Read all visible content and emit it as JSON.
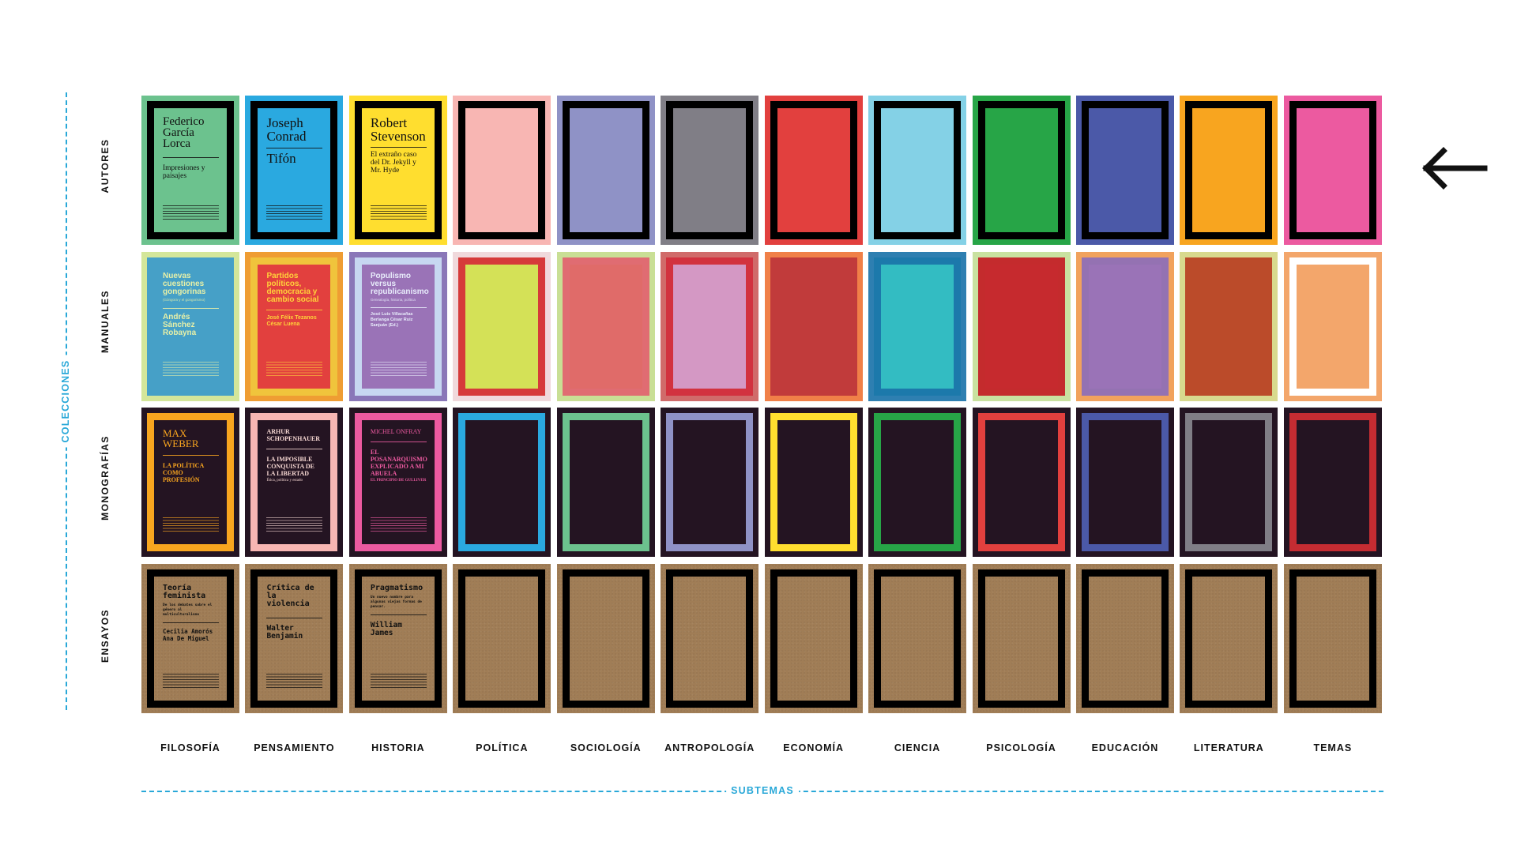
{
  "axis": {
    "vertical_label": "COLECCIONES",
    "horizontal_label": "SUBTEMAS",
    "accent_color": "#29a8d8"
  },
  "rows": [
    "AUTORES",
    "MANUALES",
    "MONOGRAFÍAS",
    "ENSAYOS"
  ],
  "columns": [
    "FILOSOFÍA",
    "PENSAMIENTO",
    "HISTORIA",
    "POLÍTICA",
    "SOCIOLOGÍA",
    "ANTROPOLOGÍA",
    "ECONOMÍA",
    "CIENCIA",
    "PSICOLOGÍA",
    "EDUCACIÓN",
    "LITERATURA",
    "TEMAS"
  ],
  "arrow_icon": "arrow-left-icon",
  "autores": {
    "colors": [
      "#6cc28e",
      "#2aa9e0",
      "#ffde2f",
      "#f8b6b3",
      "#8f92c6",
      "#807e86",
      "#e2403e",
      "#84d1e6",
      "#27a547",
      "#4b59a8",
      "#f8a51f",
      "#ec5aa0"
    ],
    "covers": [
      {
        "author": "Federico García Lorca",
        "title": "Impresiones y paisajes"
      },
      {
        "author": "Joseph Conrad",
        "title": "Tifón"
      },
      {
        "author": "Robert Stevenson",
        "title": "El extraño caso del Dr. Jekyll y Mr. Hyde"
      }
    ]
  },
  "manuales": {
    "outer": [
      "#d4e69a",
      "#ef9d33",
      "#8a77b8",
      "#f0d9dc",
      "#c9df95",
      "#d06b6a",
      "#f08048",
      "#2e7fb1",
      "#c9e1a0",
      "#f1a25d",
      "#d8d98e",
      "#f3a66b"
    ],
    "border": [
      "#46a0c7",
      "#f0c43c",
      "#c7d7f1",
      "#d63a3a",
      "#e06c72",
      "#d2323f",
      "#c13b3b",
      "#1c79ab",
      "#c42b2d",
      "#9472b2",
      "#bb4b2a",
      "#ffffff"
    ],
    "fill": [
      "#46a0c7",
      "#e2403e",
      "#9a73b7",
      "#d4e157",
      "#e06b69",
      "#d498c4",
      "#c13b3b",
      "#33bcc2",
      "#c62a2e",
      "#9a73b7",
      "#bb4b2a",
      "#f3a66b"
    ],
    "covers": [
      {
        "title": "Nuevas cuestiones gongorinas",
        "subtitle": "(Góngora y el gongorismo)",
        "author": "Andrés Sánchez Robayna",
        "color": "#e7f0a8"
      },
      {
        "title": "Partidos políticos, democracia y cambio social",
        "author": "José Félix Tezanos César Luena",
        "color": "#ffd23a"
      },
      {
        "title": "Populismo versus republicanismo",
        "subtitle": "Genealogía, historia, política",
        "author": "José Luis Villacañas Berlanga César Ruiz Sanjuán (Ed.)",
        "color": "#e8ecfb"
      }
    ]
  },
  "monografias": {
    "border": [
      "#f8a51f",
      "#f8b6b3",
      "#ec5aa0",
      "#2aa9e0",
      "#6cc28e",
      "#8f92c6",
      "#ffde2f",
      "#27a547",
      "#e2403e",
      "#4b59a8",
      "#807e86",
      "#c52c32"
    ],
    "fill": "#241422",
    "covers": [
      {
        "author": "MAX WEBER",
        "title": "LA POLÍTICA COMO PROFESIÓN"
      },
      {
        "author": "ARHUR SCHOPENHAUER",
        "title": "LA IMPOSIBLE CONQUISTA DE LA LIBERTAD",
        "subtitle": "Ética, política y estado"
      },
      {
        "author": "MICHEL ONFRAY",
        "title": "EL POSANARQUISMO EXPLICADO A MI ABUELA",
        "subtitle": "EL PRINCIPIO DE GULLIVER"
      }
    ]
  },
  "ensayos": {
    "color": "#a07d56",
    "covers": [
      {
        "title": "Teoría feminista",
        "subtitle": "De los debates sobre el género al multiculturalismo",
        "author": "Cecilia Amorós Ana De Miguel"
      },
      {
        "title": "Crítica de la violencia",
        "author": "Walter Benjamin"
      },
      {
        "title": "Pragmatismo",
        "subtitle": "Un nuevo nombre para algunas viejas formas de pensar.",
        "author": "William James"
      }
    ]
  }
}
